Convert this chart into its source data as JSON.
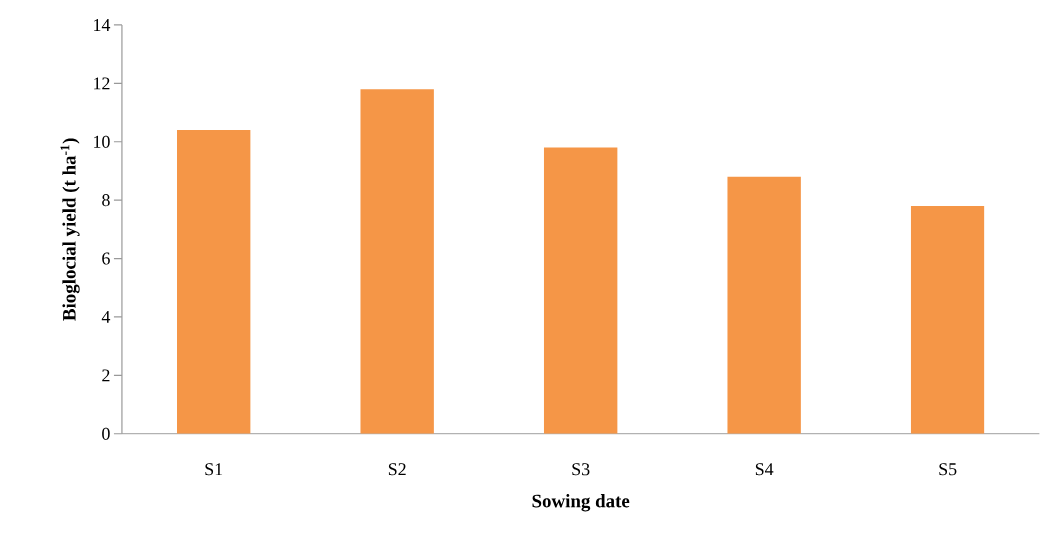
{
  "chart_data": {
    "type": "bar",
    "xlabel": "Sowing date",
    "ylabel": "Bioglocial yield (t ha$^{-1}$)",
    "categories": [
      "S1",
      "S2",
      "S3",
      "S4",
      "S5"
    ],
    "values": [
      10.4,
      11.8,
      9.8,
      8.8,
      7.8
    ],
    "color": "#f59647",
    "ylim": [
      0,
      14
    ],
    "yticks": [
      0,
      2,
      4,
      6,
      8,
      10,
      12,
      14
    ]
  }
}
